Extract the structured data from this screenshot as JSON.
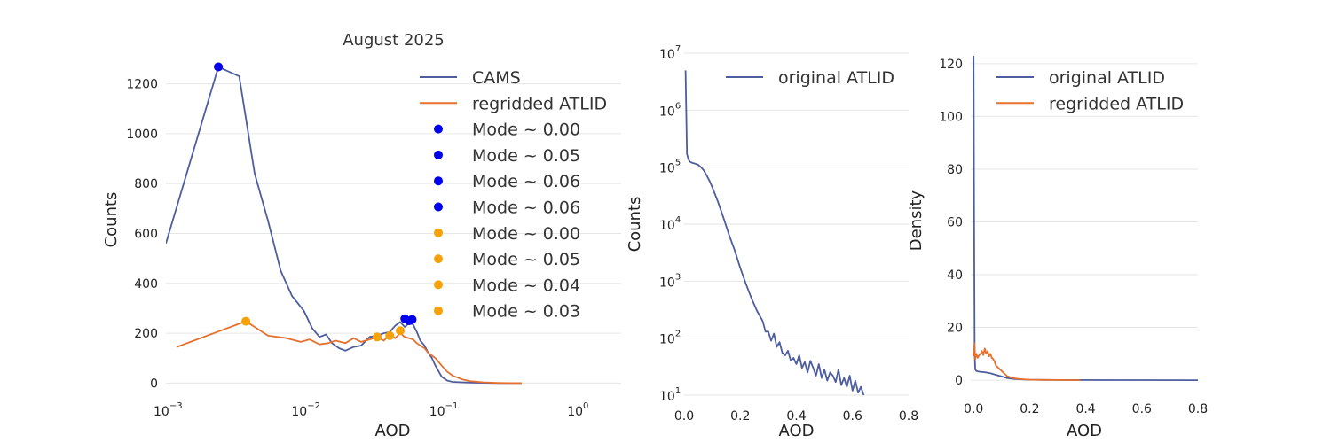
{
  "colors": {
    "cams": "#4e5d9e",
    "regridded": "#e6702e",
    "mode_cams": "#0000ee",
    "mode_regridded": "#f5a20a",
    "grid": "#e6e6e6",
    "text": "#222222"
  },
  "chart_data": [
    {
      "type": "line",
      "title": "August 2025",
      "xlabel": "AOD",
      "ylabel": "Counts",
      "xscale": "log",
      "xlim": [
        0.001,
        2.0
      ],
      "ylim": [
        -20,
        1330
      ],
      "xticks": [
        {
          "value": 0.001,
          "base": "10",
          "exp": "−3"
        },
        {
          "value": 0.01,
          "base": "10",
          "exp": "−2"
        },
        {
          "value": 0.1,
          "base": "10",
          "exp": "−1"
        },
        {
          "value": 1,
          "base": "10",
          "exp": "0"
        }
      ],
      "yticks": [
        0,
        200,
        400,
        600,
        800,
        1000,
        1200
      ],
      "ytick_labels": [
        "0",
        "200",
        "400",
        "600",
        "800",
        "1000",
        "1200"
      ],
      "grid": true,
      "legend_position": "top-right",
      "series": [
        {
          "name": "CAMS",
          "kind": "line",
          "color": "#4e5d9e",
          "x": [
            0.001,
            0.0024,
            0.0034,
            0.0044,
            0.0055,
            0.0068,
            0.0082,
            0.01,
            0.0115,
            0.013,
            0.0145,
            0.016,
            0.018,
            0.02,
            0.023,
            0.026,
            0.03,
            0.034,
            0.038,
            0.042,
            0.046,
            0.05,
            0.054,
            0.058,
            0.062,
            0.066,
            0.07,
            0.075,
            0.08,
            0.085,
            0.09,
            0.1,
            0.11,
            0.12,
            0.14,
            0.16,
            0.2,
            0.25,
            0.3,
            0.38
          ],
          "y": [
            560,
            1268,
            1230,
            840,
            650,
            450,
            350,
            290,
            220,
            185,
            195,
            160,
            140,
            130,
            145,
            150,
            185,
            190,
            200,
            205,
            230,
            245,
            225,
            240,
            235,
            205,
            170,
            150,
            120,
            100,
            70,
            25,
            10,
            5,
            3,
            2,
            1,
            0,
            0,
            0
          ]
        },
        {
          "name": "regridded ATLID",
          "kind": "line",
          "color": "#e6702e",
          "x": [
            0.0012,
            0.0038,
            0.0055,
            0.0075,
            0.0095,
            0.011,
            0.013,
            0.015,
            0.017,
            0.02,
            0.023,
            0.026,
            0.03,
            0.034,
            0.038,
            0.042,
            0.046,
            0.05,
            0.054,
            0.058,
            0.062,
            0.066,
            0.07,
            0.075,
            0.08,
            0.085,
            0.09,
            0.1,
            0.11,
            0.12,
            0.14,
            0.16,
            0.2,
            0.25,
            0.3,
            0.38
          ],
          "y": [
            145,
            248,
            190,
            180,
            165,
            175,
            155,
            160,
            170,
            160,
            180,
            165,
            175,
            185,
            170,
            195,
            180,
            200,
            185,
            180,
            175,
            160,
            150,
            140,
            120,
            110,
            100,
            70,
            45,
            30,
            15,
            8,
            3,
            1,
            0,
            0
          ]
        }
      ],
      "modes": [
        {
          "name": "Mode ~ 0.00",
          "group": "CAMS",
          "x": 0.0024,
          "y": 1268
        },
        {
          "name": "Mode ~ 0.05",
          "group": "CAMS",
          "x": 0.054,
          "y": 258
        },
        {
          "name": "Mode ~ 0.06",
          "group": "CAMS",
          "x": 0.058,
          "y": 250
        },
        {
          "name": "Mode ~ 0.06",
          "group": "CAMS",
          "x": 0.061,
          "y": 255
        },
        {
          "name": "Mode ~ 0.00",
          "group": "regridded ATLID",
          "x": 0.0038,
          "y": 248
        },
        {
          "name": "Mode ~ 0.05",
          "group": "regridded ATLID",
          "x": 0.05,
          "y": 210
        },
        {
          "name": "Mode ~ 0.04",
          "group": "regridded ATLID",
          "x": 0.042,
          "y": 190
        },
        {
          "name": "Mode ~ 0.03",
          "group": "regridded ATLID",
          "x": 0.034,
          "y": 185
        }
      ]
    },
    {
      "type": "line",
      "title": "",
      "xlabel": "AOD",
      "ylabel": "Counts",
      "yscale": "log",
      "xlim": [
        0.0,
        0.8
      ],
      "ylim": [
        10,
        10000000
      ],
      "xticks": [
        0.0,
        0.2,
        0.4,
        0.6,
        0.8
      ],
      "xtick_labels": [
        "0.0",
        "0.2",
        "0.4",
        "0.6",
        "0.8"
      ],
      "yticks": [
        {
          "value": 10,
          "base": "10",
          "exp": "1"
        },
        {
          "value": 100,
          "base": "10",
          "exp": "2"
        },
        {
          "value": 1000,
          "base": "10",
          "exp": "3"
        },
        {
          "value": 10000,
          "base": "10",
          "exp": "4"
        },
        {
          "value": 100000,
          "base": "10",
          "exp": "5"
        },
        {
          "value": 1000000,
          "base": "10",
          "exp": "6"
        },
        {
          "value": 10000000,
          "base": "10",
          "exp": "7"
        }
      ],
      "grid": true,
      "legend_position": "top-right",
      "series": [
        {
          "name": "original ATLID",
          "kind": "line",
          "color": "#4e5d9e",
          "x": [
            0.005,
            0.01,
            0.015,
            0.02,
            0.03,
            0.04,
            0.05,
            0.06,
            0.07,
            0.08,
            0.09,
            0.1,
            0.12,
            0.14,
            0.16,
            0.18,
            0.2,
            0.22,
            0.24,
            0.26,
            0.28,
            0.29,
            0.3,
            0.31,
            0.32,
            0.33,
            0.34,
            0.35,
            0.36,
            0.37,
            0.38,
            0.39,
            0.4,
            0.41,
            0.42,
            0.43,
            0.44,
            0.45,
            0.46,
            0.47,
            0.48,
            0.49,
            0.5,
            0.51,
            0.52,
            0.53,
            0.54,
            0.55,
            0.56,
            0.57,
            0.58,
            0.59,
            0.6,
            0.61,
            0.62,
            0.63,
            0.64
          ],
          "y": [
            5000000,
            170000,
            140000,
            125000,
            118000,
            115000,
            110000,
            100000,
            88000,
            72000,
            58000,
            45000,
            25000,
            13000,
            6500,
            3500,
            1700,
            900,
            500,
            300,
            200,
            130,
            130,
            90,
            120,
            70,
            85,
            55,
            50,
            60,
            40,
            45,
            35,
            50,
            30,
            38,
            25,
            40,
            30,
            22,
            35,
            20,
            28,
            18,
            25,
            22,
            17,
            28,
            15,
            20,
            14,
            22,
            12,
            18,
            11,
            14,
            10
          ]
        }
      ]
    },
    {
      "type": "line",
      "title": "",
      "xlabel": "AOD",
      "ylabel": "Density",
      "xlim": [
        -0.01,
        0.8
      ],
      "ylim": [
        -3,
        124
      ],
      "xticks": [
        0.0,
        0.2,
        0.4,
        0.6,
        0.8
      ],
      "xtick_labels": [
        "0.0",
        "0.2",
        "0.4",
        "0.6",
        "0.8"
      ],
      "yticks": [
        0,
        20,
        40,
        60,
        80,
        100,
        120
      ],
      "ytick_labels": [
        "0",
        "20",
        "40",
        "60",
        "80",
        "100",
        "120"
      ],
      "grid": true,
      "legend_position": "top-right",
      "series": [
        {
          "name": "original ATLID",
          "kind": "line",
          "color": "#4e5d9e",
          "x": [
            0.0,
            0.002,
            0.004,
            0.006,
            0.01,
            0.02,
            0.04,
            0.06,
            0.08,
            0.1,
            0.12,
            0.15,
            0.2,
            0.3,
            0.5,
            0.8
          ],
          "y": [
            123,
            60,
            10,
            4,
            3.5,
            3.2,
            3.0,
            2.6,
            2.0,
            1.4,
            0.8,
            0.4,
            0.15,
            0.05,
            0.02,
            0.0
          ]
        },
        {
          "name": "regridded ATLID",
          "kind": "line",
          "color": "#e6702e",
          "x": [
            0.0,
            0.003,
            0.006,
            0.01,
            0.015,
            0.02,
            0.025,
            0.03,
            0.035,
            0.04,
            0.045,
            0.05,
            0.055,
            0.06,
            0.065,
            0.07,
            0.075,
            0.08,
            0.09,
            0.1,
            0.11,
            0.12,
            0.14,
            0.16,
            0.18,
            0.2,
            0.25,
            0.3,
            0.38
          ],
          "y": [
            9,
            14,
            8,
            10,
            8.5,
            9.5,
            10,
            11,
            9.5,
            12,
            10,
            11,
            9,
            10,
            8.5,
            8,
            7,
            5.5,
            4.5,
            3.5,
            2.5,
            1.5,
            0.8,
            0.5,
            0.3,
            0.2,
            0.1,
            0.05,
            0.0
          ]
        }
      ]
    }
  ]
}
